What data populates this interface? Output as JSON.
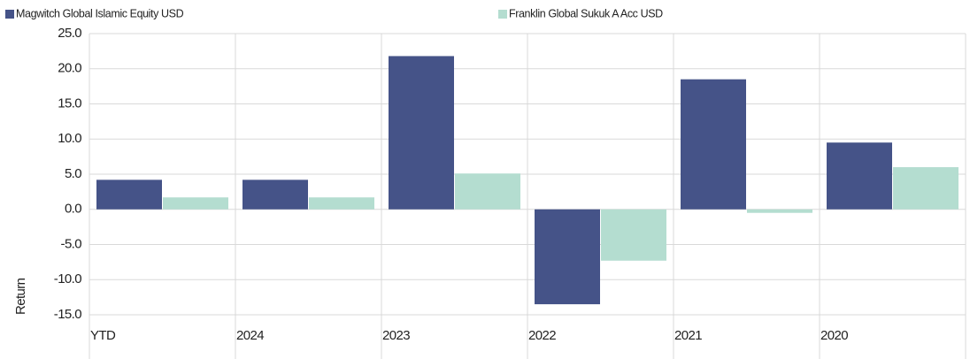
{
  "chart_data": {
    "type": "bar",
    "categories": [
      "YTD",
      "2024",
      "2023",
      "2022",
      "2021",
      "2020"
    ],
    "series": [
      {
        "name": "Magwitch Global Islamic Equity USD",
        "color": "#455388",
        "values": [
          4.2,
          4.2,
          21.8,
          -13.5,
          18.5,
          9.5
        ]
      },
      {
        "name": "Franklin Global Sukuk A Acc USD",
        "color": "#b4ddd0",
        "values": [
          1.7,
          1.7,
          5.1,
          -7.3,
          -0.5,
          6.0
        ]
      }
    ],
    "y_label": "Return",
    "ylim": [
      -15,
      25
    ],
    "yticks": [
      {
        "value": -15,
        "label": "-15.0"
      },
      {
        "value": -10,
        "label": "-10.0"
      },
      {
        "value": -5,
        "label": "-5.0"
      },
      {
        "value": 0,
        "label": "0.0"
      },
      {
        "value": 5,
        "label": "5.0"
      },
      {
        "value": 10,
        "label": "10.0"
      },
      {
        "value": 15,
        "label": "15.0"
      },
      {
        "value": 20,
        "label": "20.0"
      },
      {
        "value": 25,
        "label": "25.0"
      }
    ],
    "grid": true,
    "legend": "top"
  }
}
